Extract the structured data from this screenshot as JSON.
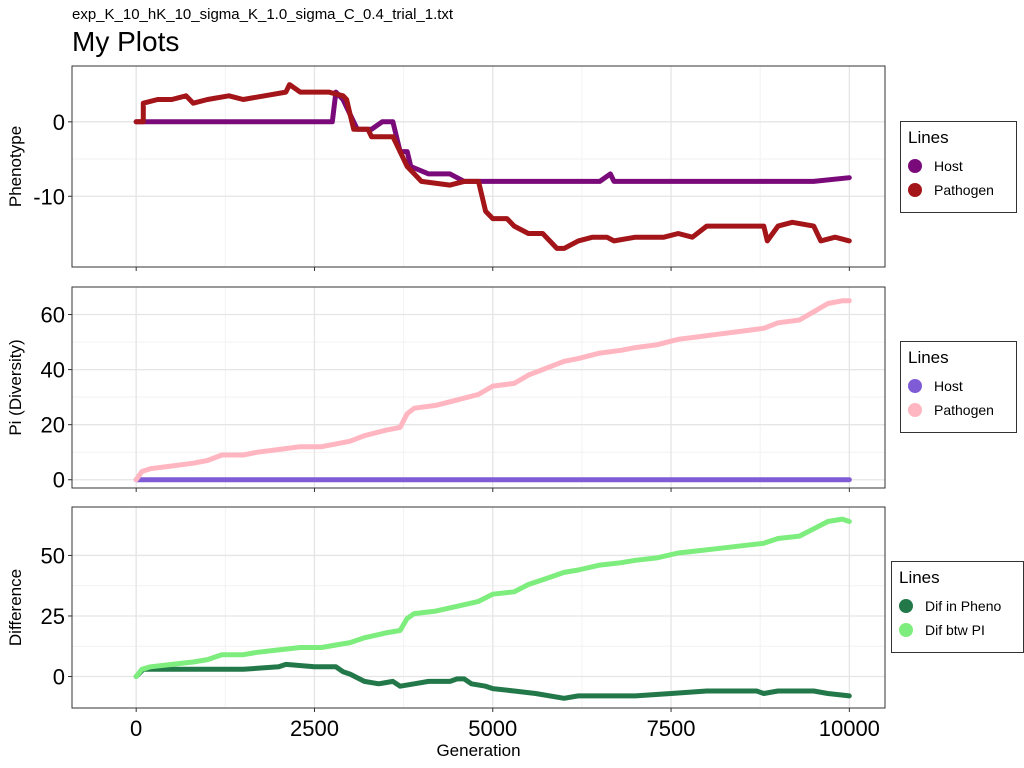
{
  "header": {
    "subtitle": "exp_K_10_hK_10_sigma_K_1.0_sigma_C_0.4_trial_1.txt",
    "title": "My Plots"
  },
  "chart_data": [
    {
      "type": "line",
      "title": "",
      "xlabel": "",
      "ylabel": "Phenotype",
      "xlim": [
        -900,
        10500
      ],
      "ylim": [
        -19.5,
        7.5
      ],
      "xticks": [
        0,
        2500,
        5000,
        7500,
        10000
      ],
      "yticks": [
        0,
        -10
      ],
      "ytick_labels": [
        "0",
        "-10"
      ],
      "show_x_tick_labels": false,
      "grid": true,
      "legend": {
        "title": "Lines",
        "position": "right"
      },
      "series": [
        {
          "name": "Host",
          "color": "#7a0a7a",
          "points": [
            [
              0,
              0
            ],
            [
              2750,
              0
            ],
            [
              2800,
              4
            ],
            [
              2900,
              3
            ],
            [
              3000,
              1
            ],
            [
              3100,
              -1
            ],
            [
              3200,
              -1
            ],
            [
              3300,
              -1
            ],
            [
              3450,
              0
            ],
            [
              3600,
              0
            ],
            [
              3700,
              -4
            ],
            [
              3800,
              -4
            ],
            [
              3850,
              -6
            ],
            [
              4100,
              -7
            ],
            [
              4400,
              -7
            ],
            [
              4600,
              -8
            ],
            [
              5000,
              -8
            ],
            [
              6000,
              -8
            ],
            [
              6500,
              -8
            ],
            [
              6650,
              -7
            ],
            [
              6700,
              -8
            ],
            [
              7500,
              -8
            ],
            [
              8500,
              -8
            ],
            [
              9500,
              -8
            ],
            [
              10000,
              -7.5
            ]
          ]
        },
        {
          "name": "Pathogen",
          "color": "#a31519",
          "points": [
            [
              0,
              0
            ],
            [
              100,
              0
            ],
            [
              100,
              2.5
            ],
            [
              300,
              3
            ],
            [
              500,
              3
            ],
            [
              700,
              3.5
            ],
            [
              800,
              2.5
            ],
            [
              1000,
              3
            ],
            [
              1300,
              3.5
            ],
            [
              1500,
              3
            ],
            [
              1800,
              3.5
            ],
            [
              2100,
              4
            ],
            [
              2150,
              5
            ],
            [
              2300,
              4
            ],
            [
              2600,
              4
            ],
            [
              2700,
              4
            ],
            [
              2900,
              3.5
            ],
            [
              2950,
              3
            ],
            [
              3000,
              1
            ],
            [
              3050,
              -1
            ],
            [
              3250,
              -1
            ],
            [
              3300,
              -2
            ],
            [
              3500,
              -2
            ],
            [
              3600,
              -2
            ],
            [
              3700,
              -4
            ],
            [
              3800,
              -6
            ],
            [
              3900,
              -7
            ],
            [
              4000,
              -8
            ],
            [
              4400,
              -8.5
            ],
            [
              4600,
              -8
            ],
            [
              4800,
              -8
            ],
            [
              4900,
              -12
            ],
            [
              5000,
              -13
            ],
            [
              5200,
              -13
            ],
            [
              5300,
              -14
            ],
            [
              5500,
              -15
            ],
            [
              5700,
              -15
            ],
            [
              5900,
              -17
            ],
            [
              6000,
              -17
            ],
            [
              6200,
              -16
            ],
            [
              6400,
              -15.5
            ],
            [
              6600,
              -15.5
            ],
            [
              6700,
              -16
            ],
            [
              7000,
              -15.5
            ],
            [
              7400,
              -15.5
            ],
            [
              7600,
              -15
            ],
            [
              7800,
              -15.5
            ],
            [
              8000,
              -14
            ],
            [
              8400,
              -14
            ],
            [
              8800,
              -14
            ],
            [
              8850,
              -16
            ],
            [
              9000,
              -14
            ],
            [
              9200,
              -13.5
            ],
            [
              9500,
              -14
            ],
            [
              9600,
              -16
            ],
            [
              9800,
              -15.5
            ],
            [
              10000,
              -16
            ]
          ]
        }
      ]
    },
    {
      "type": "line",
      "title": "",
      "xlabel": "",
      "ylabel": "Pi (Diversity)",
      "xlim": [
        -900,
        10500
      ],
      "ylim": [
        -3,
        70
      ],
      "xticks": [
        0,
        2500,
        5000,
        7500,
        10000
      ],
      "yticks": [
        0,
        20,
        40,
        60
      ],
      "ytick_labels": [
        "0",
        "20",
        "40",
        "60"
      ],
      "show_x_tick_labels": false,
      "grid": true,
      "legend": {
        "title": "Lines",
        "position": "right"
      },
      "series": [
        {
          "name": "Host",
          "color": "#7f5bd5",
          "points": [
            [
              0,
              0
            ],
            [
              2000,
              0
            ],
            [
              4000,
              0
            ],
            [
              6000,
              0
            ],
            [
              8000,
              0
            ],
            [
              10000,
              0
            ]
          ]
        },
        {
          "name": "Pathogen",
          "color": "#ffb6c1",
          "points": [
            [
              0,
              0
            ],
            [
              80,
              3
            ],
            [
              200,
              4
            ],
            [
              500,
              5
            ],
            [
              800,
              6
            ],
            [
              1000,
              7
            ],
            [
              1200,
              9
            ],
            [
              1500,
              9
            ],
            [
              1700,
              10
            ],
            [
              2000,
              11
            ],
            [
              2300,
              12
            ],
            [
              2600,
              12
            ],
            [
              2800,
              13
            ],
            [
              3000,
              14
            ],
            [
              3200,
              16
            ],
            [
              3500,
              18
            ],
            [
              3700,
              19
            ],
            [
              3800,
              24
            ],
            [
              3900,
              26
            ],
            [
              4200,
              27
            ],
            [
              4500,
              29
            ],
            [
              4800,
              31
            ],
            [
              5000,
              34
            ],
            [
              5300,
              35
            ],
            [
              5500,
              38
            ],
            [
              5700,
              40
            ],
            [
              6000,
              43
            ],
            [
              6200,
              44
            ],
            [
              6500,
              46
            ],
            [
              6800,
              47
            ],
            [
              7000,
              48
            ],
            [
              7300,
              49
            ],
            [
              7600,
              51
            ],
            [
              7900,
              52
            ],
            [
              8200,
              53
            ],
            [
              8500,
              54
            ],
            [
              8800,
              55
            ],
            [
              9000,
              57
            ],
            [
              9300,
              58
            ],
            [
              9500,
              61
            ],
            [
              9700,
              64
            ],
            [
              9900,
              65
            ],
            [
              10000,
              65
            ]
          ]
        }
      ]
    },
    {
      "type": "line",
      "title": "",
      "xlabel": "Generation",
      "ylabel": "Difference",
      "xlim": [
        -900,
        10500
      ],
      "ylim": [
        -13,
        70
      ],
      "xticks": [
        0,
        2500,
        5000,
        7500,
        10000
      ],
      "xtick_labels": [
        "0",
        "2500",
        "5000",
        "7500",
        "10000"
      ],
      "yticks": [
        0,
        25,
        50
      ],
      "ytick_labels": [
        "0",
        "25",
        "50"
      ],
      "show_x_tick_labels": true,
      "grid": true,
      "legend": {
        "title": "Lines",
        "position": "right"
      },
      "series": [
        {
          "name": "Dif in Pheno",
          "color": "#23784a",
          "points": [
            [
              0,
              0
            ],
            [
              100,
              3
            ],
            [
              500,
              3
            ],
            [
              1000,
              3
            ],
            [
              1500,
              3
            ],
            [
              2000,
              4
            ],
            [
              2100,
              5
            ],
            [
              2500,
              4
            ],
            [
              2800,
              4
            ],
            [
              2900,
              2
            ],
            [
              3000,
              1
            ],
            [
              3200,
              -2
            ],
            [
              3400,
              -3
            ],
            [
              3600,
              -2
            ],
            [
              3700,
              -4
            ],
            [
              3900,
              -3
            ],
            [
              4100,
              -2
            ],
            [
              4400,
              -2
            ],
            [
              4500,
              -1
            ],
            [
              4600,
              -1
            ],
            [
              4700,
              -3
            ],
            [
              4900,
              -4
            ],
            [
              5000,
              -5
            ],
            [
              5300,
              -6
            ],
            [
              5600,
              -7
            ],
            [
              6000,
              -9
            ],
            [
              6200,
              -8
            ],
            [
              6500,
              -8
            ],
            [
              7000,
              -8
            ],
            [
              7500,
              -7
            ],
            [
              8000,
              -6
            ],
            [
              8400,
              -6
            ],
            [
              8700,
              -6
            ],
            [
              8800,
              -7
            ],
            [
              9000,
              -6
            ],
            [
              9500,
              -6
            ],
            [
              9700,
              -7
            ],
            [
              10000,
              -8
            ]
          ]
        },
        {
          "name": "Dif btw PI",
          "color": "#7ded7d",
          "points": [
            [
              0,
              0
            ],
            [
              80,
              3
            ],
            [
              200,
              4
            ],
            [
              500,
              5
            ],
            [
              800,
              6
            ],
            [
              1000,
              7
            ],
            [
              1200,
              9
            ],
            [
              1500,
              9
            ],
            [
              1700,
              10
            ],
            [
              2000,
              11
            ],
            [
              2300,
              12
            ],
            [
              2600,
              12
            ],
            [
              2800,
              13
            ],
            [
              3000,
              14
            ],
            [
              3200,
              16
            ],
            [
              3500,
              18
            ],
            [
              3700,
              19
            ],
            [
              3800,
              24
            ],
            [
              3900,
              26
            ],
            [
              4200,
              27
            ],
            [
              4500,
              29
            ],
            [
              4800,
              31
            ],
            [
              5000,
              34
            ],
            [
              5300,
              35
            ],
            [
              5500,
              38
            ],
            [
              5700,
              40
            ],
            [
              6000,
              43
            ],
            [
              6200,
              44
            ],
            [
              6500,
              46
            ],
            [
              6800,
              47
            ],
            [
              7000,
              48
            ],
            [
              7300,
              49
            ],
            [
              7600,
              51
            ],
            [
              7900,
              52
            ],
            [
              8200,
              53
            ],
            [
              8500,
              54
            ],
            [
              8800,
              55
            ],
            [
              9000,
              57
            ],
            [
              9300,
              58
            ],
            [
              9500,
              61
            ],
            [
              9700,
              64
            ],
            [
              9900,
              65
            ],
            [
              10000,
              64
            ]
          ]
        }
      ]
    }
  ]
}
